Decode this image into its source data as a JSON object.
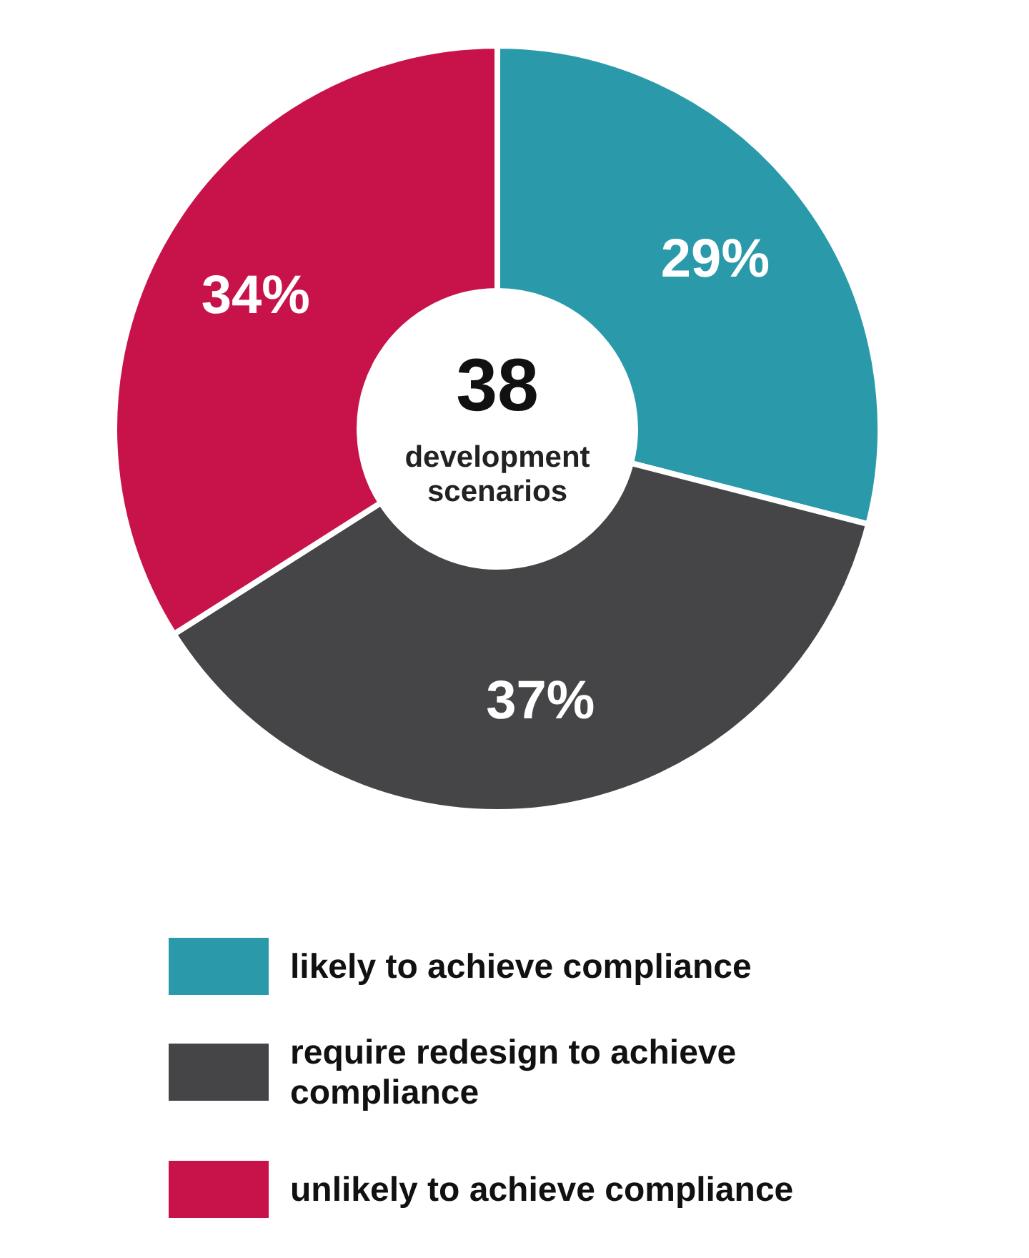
{
  "chart_data": {
    "type": "donut",
    "categories": [
      "likely to achieve compliance",
      "require redesign to achieve compliance",
      "unlikely to achieve compliance"
    ],
    "values": [
      29,
      37,
      34
    ],
    "colors": [
      "#2a9aab",
      "#454547",
      "#c8134a"
    ],
    "value_labels": [
      "29%",
      "37%",
      "34%"
    ],
    "legend": "bottom",
    "annotations": [
      "38",
      "development scenarios"
    ]
  }
}
